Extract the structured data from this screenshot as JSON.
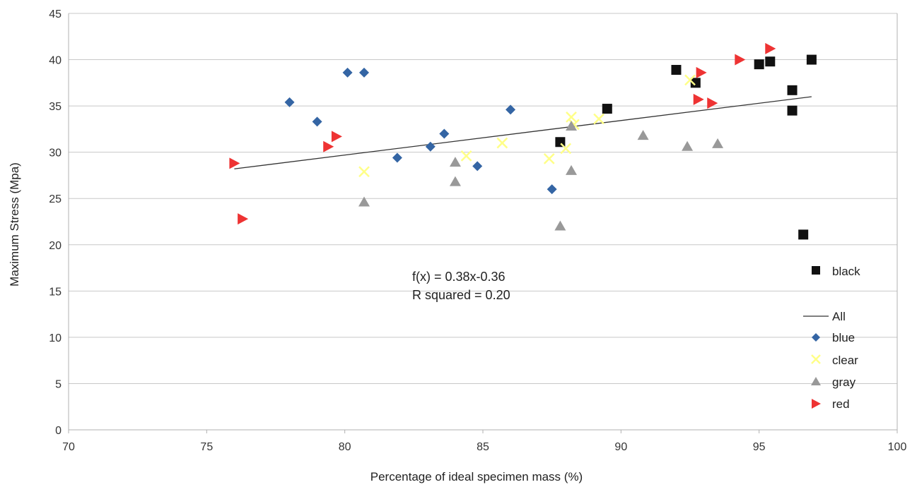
{
  "chart_data": {
    "type": "scatter",
    "xlabel": "Percentage of ideal specimen mass (%)",
    "ylabel": "Maximum Stress (Mpa)",
    "xlim": [
      70,
      100
    ],
    "ylim": [
      0,
      45
    ],
    "x_ticks": [
      70,
      75,
      80,
      85,
      90,
      95,
      100
    ],
    "y_ticks": [
      0,
      5,
      10,
      15,
      20,
      25,
      30,
      35,
      40,
      45
    ],
    "grid": "horizontal",
    "legend_position": "right",
    "annotation": {
      "equation": "f(x) = 0.38x-0.36",
      "r_squared": "R squared = 0.20"
    },
    "trendline": {
      "name": "All",
      "color": "#333333",
      "x": [
        76.0,
        96.9
      ],
      "y": [
        28.2,
        36.0
      ]
    },
    "series": [
      {
        "name": "black",
        "marker": "square",
        "color": "#111111",
        "points": [
          [
            87.8,
            31.1
          ],
          [
            89.5,
            34.7
          ],
          [
            92.0,
            38.9
          ],
          [
            92.7,
            37.5
          ],
          [
            95.0,
            39.5
          ],
          [
            95.4,
            39.8
          ],
          [
            96.2,
            36.7
          ],
          [
            96.2,
            34.5
          ],
          [
            96.6,
            21.1
          ],
          [
            96.9,
            40.0
          ]
        ]
      },
      {
        "name": "blue",
        "marker": "diamond",
        "color": "#3465a4",
        "points": [
          [
            78.0,
            35.4
          ],
          [
            79.0,
            33.3
          ],
          [
            80.1,
            38.6
          ],
          [
            80.7,
            38.6
          ],
          [
            81.9,
            29.4
          ],
          [
            83.1,
            30.6
          ],
          [
            83.6,
            32.0
          ],
          [
            84.8,
            28.5
          ],
          [
            86.0,
            34.6
          ],
          [
            87.5,
            26.0
          ]
        ]
      },
      {
        "name": "clear",
        "marker": "x",
        "color": "#ffff88",
        "points": [
          [
            80.7,
            27.9
          ],
          [
            84.4,
            29.6
          ],
          [
            85.7,
            31.0
          ],
          [
            87.4,
            29.3
          ],
          [
            88.0,
            30.4
          ],
          [
            88.2,
            33.8
          ],
          [
            88.3,
            33.0
          ],
          [
            89.2,
            33.6
          ],
          [
            92.5,
            37.8
          ]
        ]
      },
      {
        "name": "gray",
        "marker": "triangle-up",
        "color": "#999999",
        "points": [
          [
            80.7,
            24.6
          ],
          [
            84.0,
            28.9
          ],
          [
            84.0,
            26.8
          ],
          [
            87.8,
            22.0
          ],
          [
            88.2,
            28.0
          ],
          [
            88.2,
            32.8
          ],
          [
            90.8,
            31.8
          ],
          [
            92.4,
            30.6
          ],
          [
            93.5,
            30.9
          ]
        ]
      },
      {
        "name": "red",
        "marker": "triangle-right",
        "color": "#ee3333",
        "points": [
          [
            76.0,
            28.8
          ],
          [
            76.3,
            22.8
          ],
          [
            79.4,
            30.6
          ],
          [
            79.7,
            31.7
          ],
          [
            92.8,
            35.7
          ],
          [
            92.9,
            38.6
          ],
          [
            93.3,
            35.3
          ],
          [
            94.3,
            40.0
          ],
          [
            95.4,
            41.2
          ]
        ]
      }
    ]
  }
}
